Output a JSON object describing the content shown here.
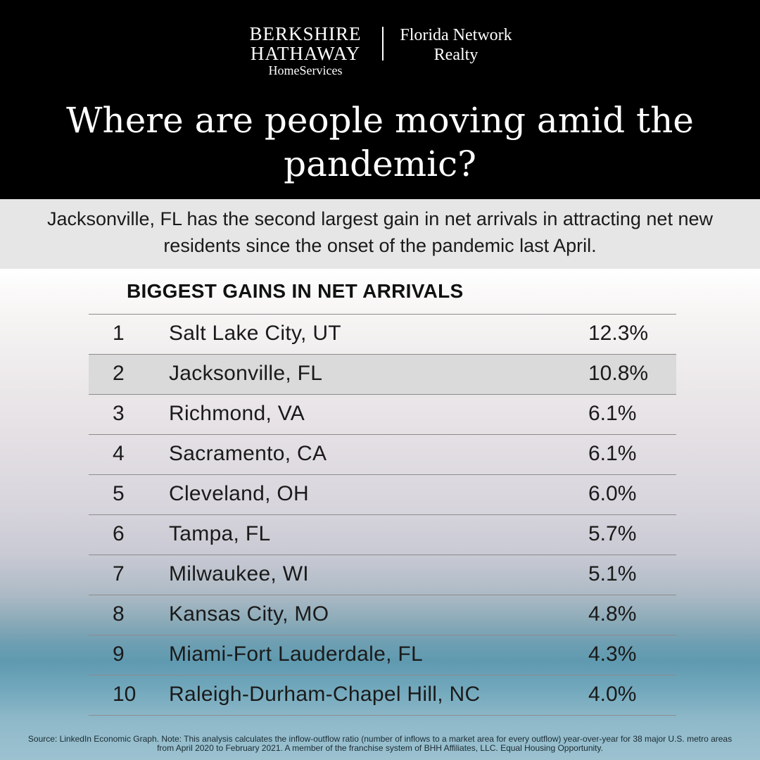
{
  "logo": {
    "brand_line1": "BERKSHIRE",
    "brand_line2": "HATHAWAY",
    "brand_line3": "HomeServices",
    "network_line1": "Florida Network",
    "network_line2": "Realty"
  },
  "headline": "Where are people moving amid the pandemic?",
  "subtitle": "Jacksonville, FL has the second largest gain in net arrivals in attracting net new residents since the onset of the pandemic last April.",
  "table": {
    "title": "BIGGEST GAINS IN NET ARRIVALS",
    "rows": [
      {
        "rank": "1",
        "city": "Salt Lake City, UT",
        "pct": "12.3%"
      },
      {
        "rank": "2",
        "city": "Jacksonville, FL",
        "pct": "10.8%"
      },
      {
        "rank": "3",
        "city": "Richmond, VA",
        "pct": "6.1%"
      },
      {
        "rank": "4",
        "city": "Sacramento, CA",
        "pct": "6.1%"
      },
      {
        "rank": "5",
        "city": "Cleveland, OH",
        "pct": "6.0%"
      },
      {
        "rank": "6",
        "city": "Tampa, FL",
        "pct": "5.7%"
      },
      {
        "rank": "7",
        "city": "Milwaukee, WI",
        "pct": "5.1%"
      },
      {
        "rank": "8",
        "city": "Kansas City, MO",
        "pct": "4.8%"
      },
      {
        "rank": "9",
        "city": "Miami-Fort Lauderdale, FL",
        "pct": "4.3%"
      },
      {
        "rank": "10",
        "city": "Raleigh-Durham-Chapel Hill, NC",
        "pct": "4.0%"
      }
    ]
  },
  "footnote": "Source: LinkedIn Economic Graph. Note: This analysis calculates the inflow-outflow ratio (number of inflows to a market area for every outflow) year-over-year for 38 major U.S. metro areas from April 2020 to February 2021.  A member of the franchise system of BHH Affiliates, LLC. Equal Housing Opportunity.",
  "colors": {
    "header_bg": "#000000",
    "band_bg": "#e6e6e6",
    "highlight_row": "#dadada",
    "text": "#1a1a1a"
  }
}
